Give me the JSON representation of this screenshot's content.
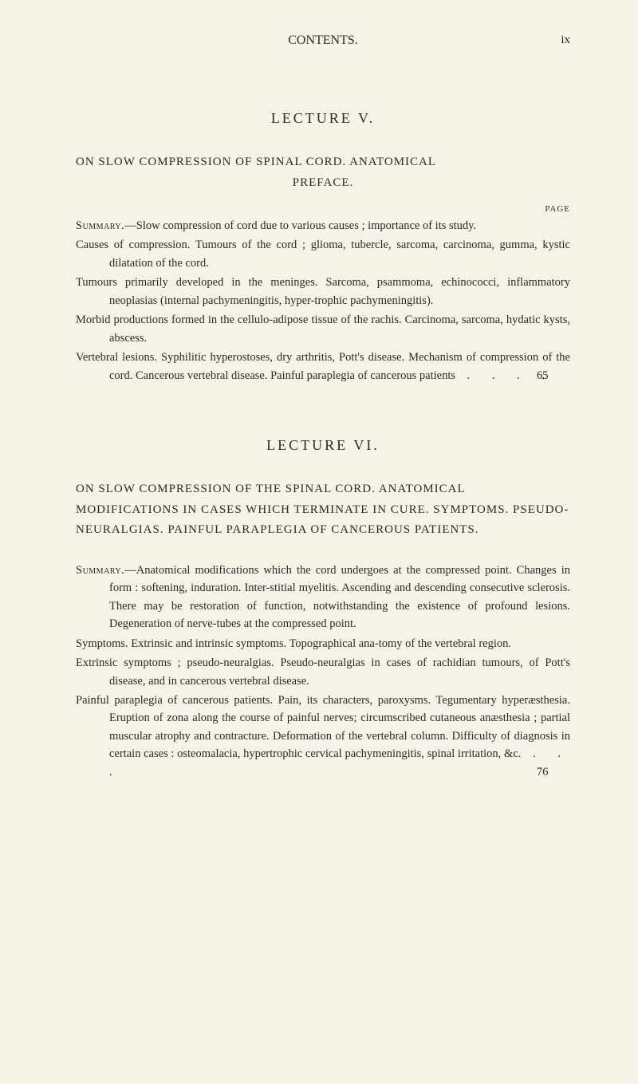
{
  "header": {
    "title": "CONTENTS.",
    "page_number": "ix"
  },
  "lecture_v": {
    "title": "LECTURE V.",
    "heading_l1": "ON SLOW COMPRESSION OF SPINAL CORD. ANATOMICAL",
    "heading_l2": "PREFACE.",
    "page_label": "PAGE",
    "summary_label": "Summary.",
    "summary_text": "—Slow compression of cord due to various causes ; importance of its study.",
    "p1": "Causes of compression. Tumours of the cord ; glioma, tubercle, sarcoma, carcinoma, gumma, kystic dilatation of the cord.",
    "p2": "Tumours primarily developed in the meninges. Sarcoma, psammoma, echinococci, inflammatory neoplasias (internal pachymeningitis, hyper-trophic pachymeningitis).",
    "p3": "Morbid productions formed in the cellulo-adipose tissue of the rachis. Carcinoma, sarcoma, hydatic kysts, abscess.",
    "p4": "Vertebral lesions. Syphilitic hyperostoses, dry arthritis, Pott's disease. Mechanism of compression of the cord. Cancerous vertebral disease. Painful paraplegia of cancerous patients",
    "p4_page": "65"
  },
  "lecture_vi": {
    "title": "LECTURE VI.",
    "heading_l1": "ON SLOW COMPRESSION OF THE SPINAL CORD. ANATOMICAL MODIFICATIONS IN CASES WHICH TERMINATE IN CURE. SYMPTOMS. PSEUDO-NEURALGIAS. PAINFUL PARAPLEGIA OF CANCEROUS PATIENTS.",
    "summary_label": "Summary.",
    "summary_text": "—Anatomical modifications which the cord undergoes at the compressed point. Changes in form : softening, induration. Inter-stitial myelitis. Ascending and descending consecutive sclerosis. There may be restoration of function, notwithstanding the existence of profound lesions. Degeneration of nerve-tubes at the compressed point.",
    "p1": "Symptoms. Extrinsic and intrinsic symptoms. Topographical ana-tomy of the vertebral region.",
    "p2": "Extrinsic symptoms ; pseudo-neuralgias. Pseudo-neuralgias in cases of rachidian tumours, of Pott's disease, and in cancerous vertebral disease.",
    "p3": "Painful paraplegia of cancerous patients. Pain, its characters, paroxysms. Tegumentary hyperæsthesia. Eruption of zona along the course of painful nerves; circumscribed cutaneous anæsthesia ; partial muscular atrophy and contracture. Deformation of the vertebral column. Difficulty of diagnosis in certain cases : osteomalacia, hypertrophic cervical pachymeningitis, spinal irritation, &c.",
    "p3_page": "76"
  },
  "style": {
    "background_color": "#f5f2e8",
    "text_color": "#2a2a2a",
    "body_fontsize": 14.5,
    "heading_fontsize": 15,
    "lecture_title_fontsize": 18
  }
}
